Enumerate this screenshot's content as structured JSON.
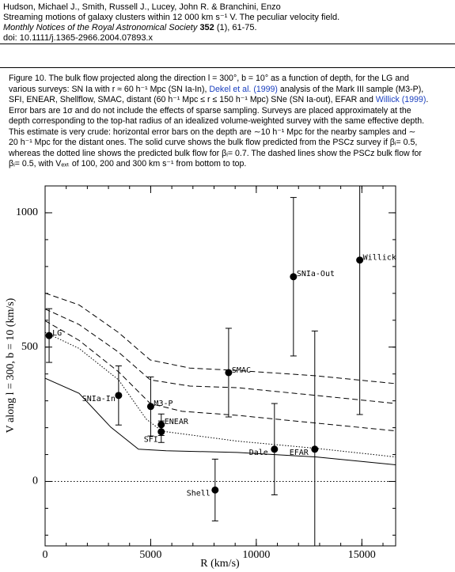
{
  "header": {
    "authors": "Hudson, Michael J., Smith, Russell J., Lucey, John R. & Branchini, Enzo",
    "title": "Streaming motions of galaxy clusters within 12 000 km s⁻¹ V. The peculiar velocity field.",
    "journal": "Monthly Notices of the Royal Astronomical Society",
    "volume": "352",
    "pages": " (1), 61-75.",
    "doi": "doi: 10.1111/j.1365-2966.2004.07893.x"
  },
  "caption": {
    "link_color": "#1a3fbf",
    "lines": [
      [
        {
          "text": "Figure 10. The bulk flow projected along the direction l = 300°, b = 10° as a function of depth, for the LG and"
        }
      ],
      [
        {
          "text": "various surveys: SN Ia with r ≈ 60 h⁻¹ Mpc (SN Ia-In), "
        },
        {
          "text": "Dekel et al. (1999)",
          "link": true
        },
        {
          "text": " analysis of the Mark III sample (M3-P),"
        }
      ],
      [
        {
          "text": "SFI, ENEAR, Shellflow, SMAC, distant (60 h⁻¹ Mpc ≤ r ≤ 150 h⁻¹ Mpc) SNe (SN Ia-out), EFAR and "
        },
        {
          "text": "Willick (1999)",
          "link": true
        },
        {
          "text": "."
        }
      ],
      [
        {
          "text": "Error bars are 1σ and do not include the effects of sparse sampling. Surveys are placed approximately at the"
        }
      ],
      [
        {
          "text": "depth corresponding to the top-hat radius of an idealized volume-weighted survey with the same effective depth."
        }
      ],
      [
        {
          "text": "This estimate is very crude: horizontal error bars on the depth are ∼10 h⁻¹ Mpc for the nearby samples and ∼"
        }
      ],
      [
        {
          "text": "20 h⁻¹ Mpc for the distant ones. The solid curve shows the bulk flow predicted from the PSCz survey if βᵢ= 0.5,"
        }
      ],
      [
        {
          "text": "whereas the dotted line shows the predicted bulk flow for βᵢ= 0.7. The dashed lines show the PSCz bulk flow for"
        }
      ],
      [
        {
          "text": "βᵢ= 0.5, with Vₑₓₜ of 100, 200 and 300 km s⁻¹ from bottom to top."
        }
      ]
    ]
  },
  "chart_data": {
    "type": "scatter",
    "xlabel": "R (km/s)",
    "ylabel": "V along l = 300, b = 10 (km/s)",
    "xlim": [
      0,
      16600
    ],
    "ylim": [
      -240,
      1100
    ],
    "xticks": [
      0,
      5000,
      10000,
      15000
    ],
    "yticks": [
      0,
      500,
      1000
    ],
    "reference_line": 0,
    "color": "#000000",
    "points": {
      "labels": [
        "LG",
        "SNIa-In",
        "M3-P",
        "ENEAR",
        "SFI",
        "Shell",
        "SMAC",
        "Dale",
        "SNIa-Out",
        "EFAR",
        "Willick"
      ],
      "x": [
        190,
        3480,
        5000,
        5500,
        5500,
        8050,
        8690,
        10860,
        11760,
        12770,
        14900
      ],
      "y": [
        543,
        320,
        279,
        211,
        185,
        -32,
        405,
        120,
        762,
        120,
        824
      ],
      "yerr": [
        100,
        110,
        110,
        40,
        40,
        115,
        165,
        170,
        295,
        440,
        575
      ]
    },
    "lines": [
      {
        "style": "solid",
        "x": [
          0,
          1610,
          3110,
          4420,
          5730,
          9100,
          12850,
          16600
        ],
        "values": [
          384,
          328,
          202,
          120,
          114,
          108,
          91,
          62
        ]
      },
      {
        "style": "dotted",
        "x": [
          0,
          1610,
          3480,
          4790,
          5540,
          9100,
          12850,
          16600
        ],
        "values": [
          555,
          495,
          378,
          232,
          187,
          150,
          123,
          91
        ]
      },
      {
        "style": "dashed",
        "x": [
          0,
          1610,
          3480,
          4980,
          6480,
          9100,
          12850,
          16600
        ],
        "values": [
          598,
          525,
          408,
          290,
          261,
          246,
          217,
          188
        ]
      },
      {
        "style": "dashed",
        "x": [
          0,
          1610,
          3480,
          4980,
          6850,
          9100,
          12850,
          16600
        ],
        "values": [
          642,
          584,
          481,
          378,
          355,
          349,
          320,
          290
        ]
      },
      {
        "style": "dashed",
        "x": [
          0,
          1610,
          3480,
          4980,
          6850,
          9100,
          12850,
          16600
        ],
        "values": [
          701,
          657,
          554,
          452,
          422,
          413,
          393,
          364
        ]
      }
    ]
  }
}
